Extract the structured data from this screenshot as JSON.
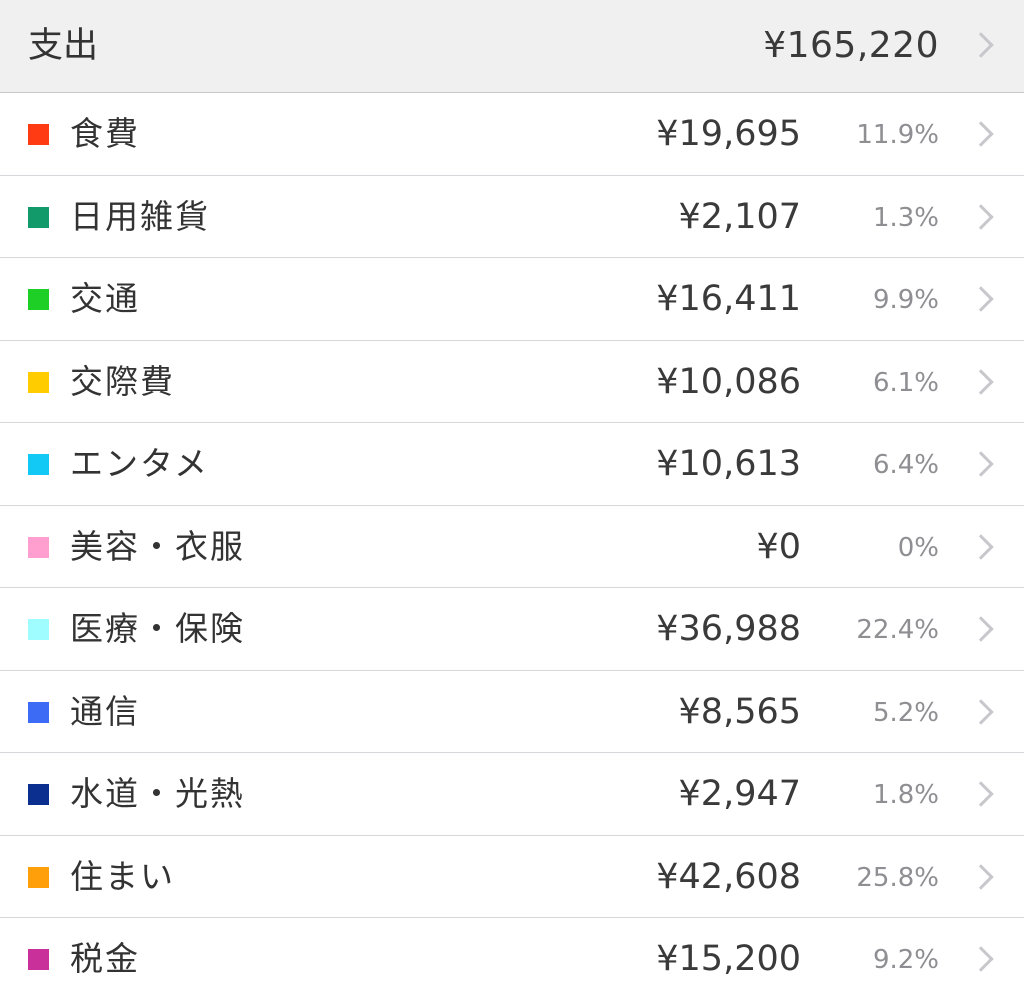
{
  "header": {
    "title": "支出",
    "total": "¥165,220"
  },
  "icons": {
    "chevron": "chevron-right-icon"
  },
  "rows": [
    {
      "name": "食費",
      "amount": "¥19,695",
      "pct": "11.9%",
      "color": "#ff3b14"
    },
    {
      "name": "日用雑貨",
      "amount": "¥2,107",
      "pct": "1.3%",
      "color": "#139a6b"
    },
    {
      "name": "交通",
      "amount": "¥16,411",
      "pct": "9.9%",
      "color": "#1ecf26"
    },
    {
      "name": "交際費",
      "amount": "¥10,086",
      "pct": "6.1%",
      "color": "#ffcc00"
    },
    {
      "name": "エンタメ",
      "amount": "¥10,613",
      "pct": "6.4%",
      "color": "#12c9f5"
    },
    {
      "name": "美容・衣服",
      "amount": "¥0",
      "pct": "0%",
      "color": "#ff9fcf"
    },
    {
      "name": "医療・保険",
      "amount": "¥36,988",
      "pct": "22.4%",
      "color": "#9ffcff"
    },
    {
      "name": "通信",
      "amount": "¥8,565",
      "pct": "5.2%",
      "color": "#3c6cf5"
    },
    {
      "name": "水道・光熱",
      "amount": "¥2,947",
      "pct": "1.8%",
      "color": "#0a2f8f"
    },
    {
      "name": "住まい",
      "amount": "¥42,608",
      "pct": "25.8%",
      "color": "#ff9f0a"
    },
    {
      "name": "税金",
      "amount": "¥15,200",
      "pct": "9.2%",
      "color": "#c9309a"
    }
  ]
}
